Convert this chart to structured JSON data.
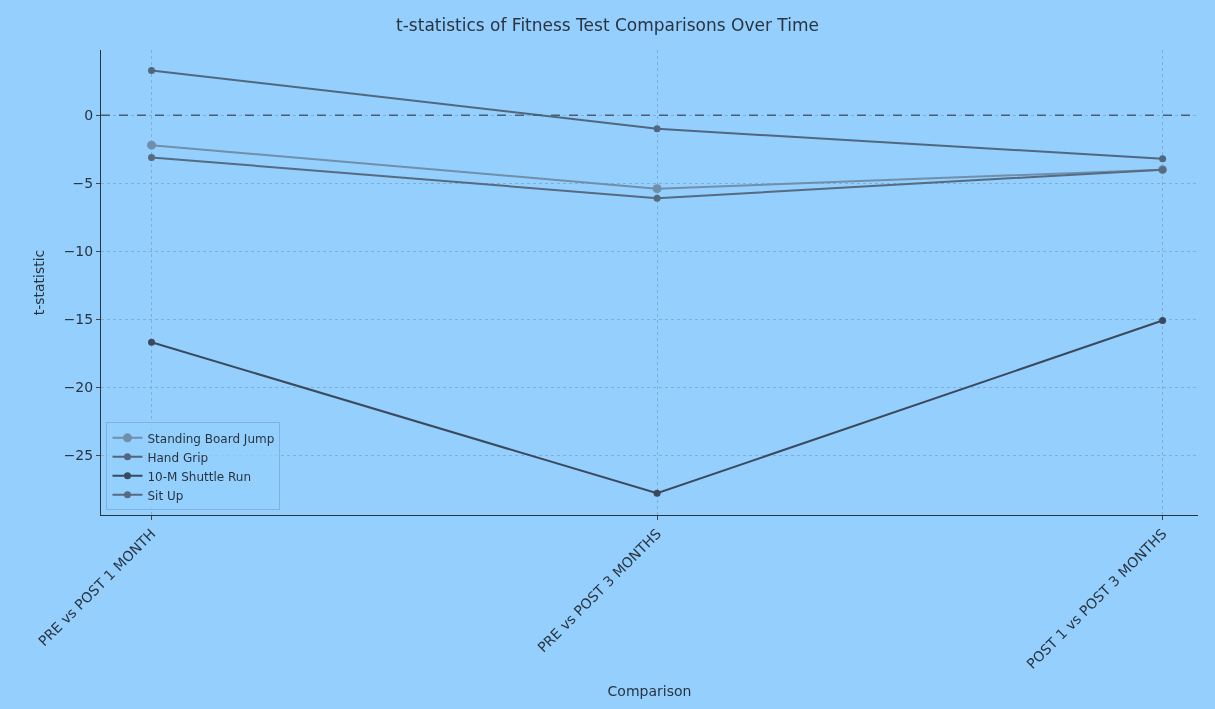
{
  "chart_data": {
    "type": "line",
    "title": "t-statistics of Fitness Test Comparisons Over Time",
    "xlabel": "Comparison",
    "ylabel": "t-statistic",
    "categories": [
      "PRE vs POST 1 MONTH",
      "PRE vs POST 3 MONTHS",
      "POST 1 vs POST 3 MONTHS"
    ],
    "series": [
      {
        "name": "Standing Board Jump",
        "color": "#6f8fab",
        "values": [
          -2.2,
          -5.4,
          -4.0
        ]
      },
      {
        "name": "Hand Grip",
        "color": "#50677f",
        "values": [
          3.3,
          -1.0,
          -3.2
        ]
      },
      {
        "name": "10-M Shuttle Run",
        "color": "#3a4a5c",
        "values": [
          -16.7,
          -27.8,
          -15.1
        ]
      },
      {
        "name": "Sit Up",
        "color": "#566a80",
        "values": [
          -3.1,
          -6.1,
          -4.0
        ]
      }
    ],
    "ylim": [
      -29.4,
      4.8
    ],
    "yticks": [
      -25,
      -20,
      -15,
      -10,
      -5,
      0
    ],
    "ref_lines": [
      {
        "axis": "y",
        "value": 0,
        "color": "#4a5f75",
        "line_style": "dashed"
      }
    ],
    "grid": true,
    "legend": "bottom left",
    "marker": "circle",
    "line_style": "solid"
  }
}
